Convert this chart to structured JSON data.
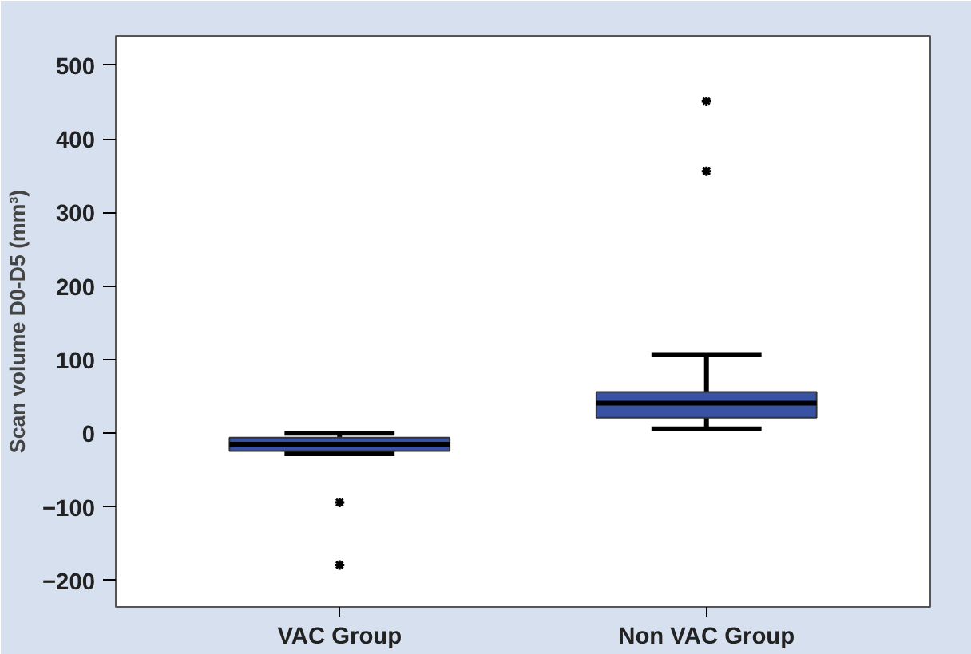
{
  "chart_data": {
    "type": "box",
    "ylabel": "Scan volume D0-D5 (mm³)",
    "categories": [
      "VAC Group",
      "Non VAC Group"
    ],
    "boxes": [
      {
        "low": -28,
        "q1": -24,
        "median": -15,
        "q3": -6,
        "high": 0,
        "outliers": [
          -94,
          -179
        ]
      },
      {
        "low": 6,
        "q1": 21,
        "median": 41,
        "q3": 56,
        "high": 107,
        "outliers": [
          356,
          451
        ]
      }
    ],
    "color": "#3953a4",
    "ylim": [
      -236,
      540
    ],
    "yticks": [
      -200,
      -100,
      0,
      100,
      200,
      300,
      400,
      500
    ],
    "grid": false
  }
}
